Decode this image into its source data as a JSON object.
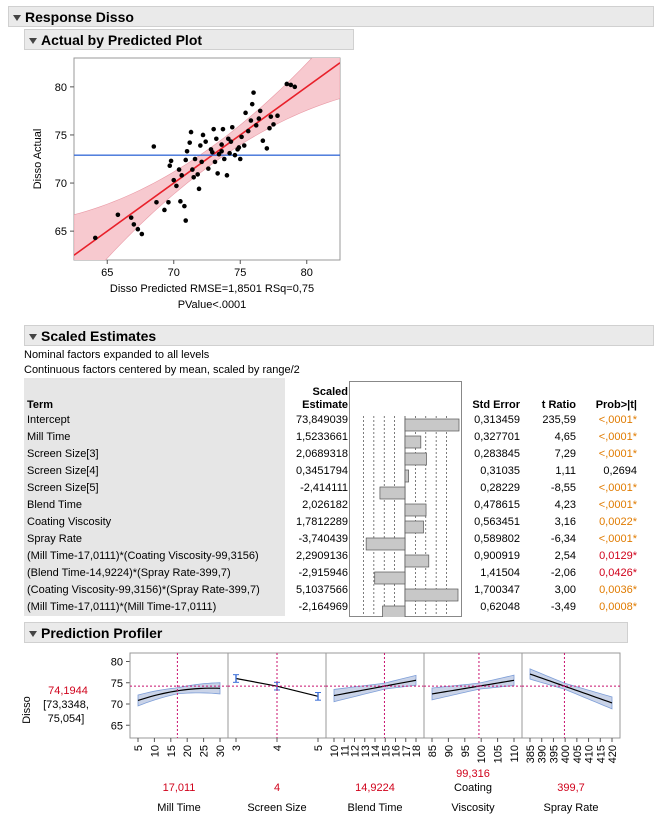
{
  "report": {
    "title": "Response Disso"
  },
  "avp": {
    "title": "Actual by Predicted Plot",
    "ylabel": "Disso Actual",
    "xlabel_line1": "Disso Predicted RMSE=1,8501 RSq=0,75",
    "xlabel_line2": "PValue<.0001",
    "xticks": [
      "65",
      "70",
      "75",
      "80"
    ],
    "yticks": [
      "65",
      "70",
      "75",
      "80"
    ]
  },
  "chart_data": {
    "type": "scatter",
    "title": "Actual by Predicted Plot",
    "xlabel": "Disso Predicted",
    "ylabel": "Disso Actual",
    "xlim": [
      62.5,
      82.5
    ],
    "ylim": [
      62,
      83
    ],
    "mean_line": 72.9,
    "stats": {
      "RMSE": "1,8501",
      "RSq": "0,75",
      "PValue": "<.0001"
    },
    "points": [
      [
        64.1,
        64.3
      ],
      [
        65.8,
        66.7
      ],
      [
        66.8,
        66.4
      ],
      [
        67.0,
        65.7
      ],
      [
        67.3,
        65.2
      ],
      [
        67.6,
        64.7
      ],
      [
        68.5,
        73.8
      ],
      [
        68.7,
        68.0
      ],
      [
        69.3,
        67.2
      ],
      [
        69.6,
        68.0
      ],
      [
        69.7,
        71.8
      ],
      [
        69.8,
        72.3
      ],
      [
        70.0,
        70.3
      ],
      [
        70.2,
        69.7
      ],
      [
        70.4,
        71.4
      ],
      [
        70.6,
        70.8
      ],
      [
        70.5,
        68.1
      ],
      [
        70.8,
        67.6
      ],
      [
        70.9,
        66.1
      ],
      [
        71.0,
        73.3
      ],
      [
        71.2,
        74.2
      ],
      [
        71.3,
        75.3
      ],
      [
        71.4,
        71.4
      ],
      [
        71.5,
        70.6
      ],
      [
        71.6,
        72.5
      ],
      [
        71.8,
        70.9
      ],
      [
        71.9,
        69.4
      ],
      [
        72.0,
        73.9
      ],
      [
        72.1,
        72.2
      ],
      [
        72.2,
        75.0
      ],
      [
        72.4,
        74.3
      ],
      [
        72.6,
        71.5
      ],
      [
        72.8,
        73.5
      ],
      [
        73.0,
        75.6
      ],
      [
        73.1,
        72.2
      ],
      [
        73.2,
        74.6
      ],
      [
        73.3,
        71.0
      ],
      [
        73.4,
        73.0
      ],
      [
        73.6,
        74.0
      ],
      [
        73.7,
        75.6
      ],
      [
        73.8,
        72.5
      ],
      [
        74.0,
        70.8
      ],
      [
        74.2,
        73.1
      ],
      [
        74.3,
        74.3
      ],
      [
        74.4,
        75.8
      ],
      [
        74.6,
        72.9
      ],
      [
        74.8,
        73.5
      ],
      [
        75.0,
        72.5
      ],
      [
        75.1,
        74.8
      ],
      [
        75.3,
        73.9
      ],
      [
        75.4,
        77.3
      ],
      [
        75.6,
        75.4
      ],
      [
        75.9,
        78.2
      ],
      [
        76.0,
        79.4
      ],
      [
        76.2,
        76.0
      ],
      [
        76.4,
        76.7
      ],
      [
        76.7,
        74.4
      ],
      [
        77.0,
        73.6
      ],
      [
        77.2,
        75.7
      ],
      [
        77.5,
        76.1
      ],
      [
        77.8,
        77.0
      ],
      [
        78.5,
        80.3
      ],
      [
        78.8,
        80.2
      ],
      [
        79.1,
        80.0
      ],
      [
        76.5,
        77.5
      ],
      [
        74.9,
        73.7
      ],
      [
        72.9,
        73.2
      ],
      [
        70.9,
        72.4
      ],
      [
        73.6,
        73.3
      ],
      [
        75.8,
        76.5
      ],
      [
        77.3,
        76.9
      ],
      [
        74.1,
        74.6
      ]
    ],
    "fit_line": [
      [
        62.5,
        62.5
      ],
      [
        82.5,
        82.5
      ]
    ]
  },
  "estimates": {
    "title": "Scaled Estimates",
    "note1": "Nominal factors expanded to all levels",
    "note2": "Continuous factors centered by mean, scaled by range/2",
    "headers": {
      "term": "Term",
      "scaled1": "Scaled",
      "scaled2": "Estimate",
      "stderr": "Std Error",
      "tratio": "t Ratio",
      "prob": "Prob>|t|"
    },
    "rows": [
      {
        "term": "Intercept",
        "est": "73,849039",
        "value": 73.849039,
        "se": "0,313459",
        "t": "235,59",
        "p": "<,0001*",
        "pc": "sig"
      },
      {
        "term": "Mill Time",
        "est": "1,5233661",
        "value": 1.5233661,
        "se": "0,327701",
        "t": "4,65",
        "p": "<,0001*",
        "pc": "sig"
      },
      {
        "term": "Screen Size[3]",
        "est": "2,0689318",
        "value": 2.0689318,
        "se": "0,283845",
        "t": "7,29",
        "p": "<,0001*",
        "pc": "sig"
      },
      {
        "term": "Screen Size[4]",
        "est": "0,3451794",
        "value": 0.3451794,
        "se": "0,31035",
        "t": "1,11",
        "p": "0,2694",
        "pc": "plain"
      },
      {
        "term": "Screen Size[5]",
        "est": "-2,414111",
        "value": -2.414111,
        "se": "0,28229",
        "t": "-8,55",
        "p": "<,0001*",
        "pc": "sig"
      },
      {
        "term": "Blend Time",
        "est": "2,026182",
        "value": 2.026182,
        "se": "0,478615",
        "t": "4,23",
        "p": "<,0001*",
        "pc": "sig"
      },
      {
        "term": "Coating Viscosity",
        "est": "1,7812289",
        "value": 1.7812289,
        "se": "0,563451",
        "t": "3,16",
        "p": "0,0022*",
        "pc": "sig"
      },
      {
        "term": "Spray Rate",
        "est": "-3,740439",
        "value": -3.740439,
        "se": "0,589802",
        "t": "-6,34",
        "p": "<,0001*",
        "pc": "sig"
      },
      {
        "term": "(Mill Time-17,0111)*(Coating Viscosity-99,3156)",
        "est": "2,2909136",
        "value": 2.2909136,
        "se": "0,900919",
        "t": "2,54",
        "p": "0,0129*",
        "pc": "sigr"
      },
      {
        "term": "(Blend Time-14,9224)*(Spray Rate-399,7)",
        "est": "-2,915946",
        "value": -2.915946,
        "se": "1,41504",
        "t": "-2,06",
        "p": "0,0426*",
        "pc": "sigr"
      },
      {
        "term": "(Coating Viscosity-99,3156)*(Spray Rate-399,7)",
        "est": "5,1037566",
        "value": 5.1037566,
        "se": "1,700347",
        "t": "3,00",
        "p": "0,0036*",
        "pc": "sig"
      },
      {
        "term": "(Mill Time-17,0111)*(Mill Time-17,0111)",
        "est": "-2,164969",
        "value": -2.164969,
        "se": "0,62048",
        "t": "-3,49",
        "p": "0,0008*",
        "pc": "sig"
      }
    ]
  },
  "profiler": {
    "title": "Prediction Profiler",
    "ylabel": "Disso",
    "pred_value": "74,1944",
    "pred_ci1": "[73,3348,",
    "pred_ci2": "75,054]",
    "yticks": [
      "65",
      "70",
      "75",
      "80"
    ],
    "factors": [
      {
        "name": "Mill Time",
        "name2": "",
        "value": "17,011",
        "ticks": [
          "5",
          "10",
          "15",
          "20",
          "25",
          "30"
        ]
      },
      {
        "name": "Screen Size",
        "name2": "",
        "value": "4",
        "ticks": [
          "3",
          "4",
          "5"
        ]
      },
      {
        "name": "Blend Time",
        "name2": "",
        "value": "14,9224",
        "ticks": [
          "10",
          "11",
          "12",
          "13",
          "14",
          "15",
          "16",
          "17",
          "18"
        ]
      },
      {
        "name": "Coating",
        "name2": "Viscosity",
        "value": "99,316",
        "ticks": [
          "85",
          "90",
          "95",
          "100",
          "105",
          "110"
        ]
      },
      {
        "name": "Spray Rate",
        "name2": "",
        "value": "399,7",
        "ticks": [
          "385",
          "390",
          "395",
          "400",
          "405",
          "410",
          "415",
          "420"
        ]
      }
    ],
    "colors": {
      "fit": "#000000",
      "band": "#7f9fd8",
      "ref": "#c8106e",
      "value": "#d0021b"
    }
  }
}
